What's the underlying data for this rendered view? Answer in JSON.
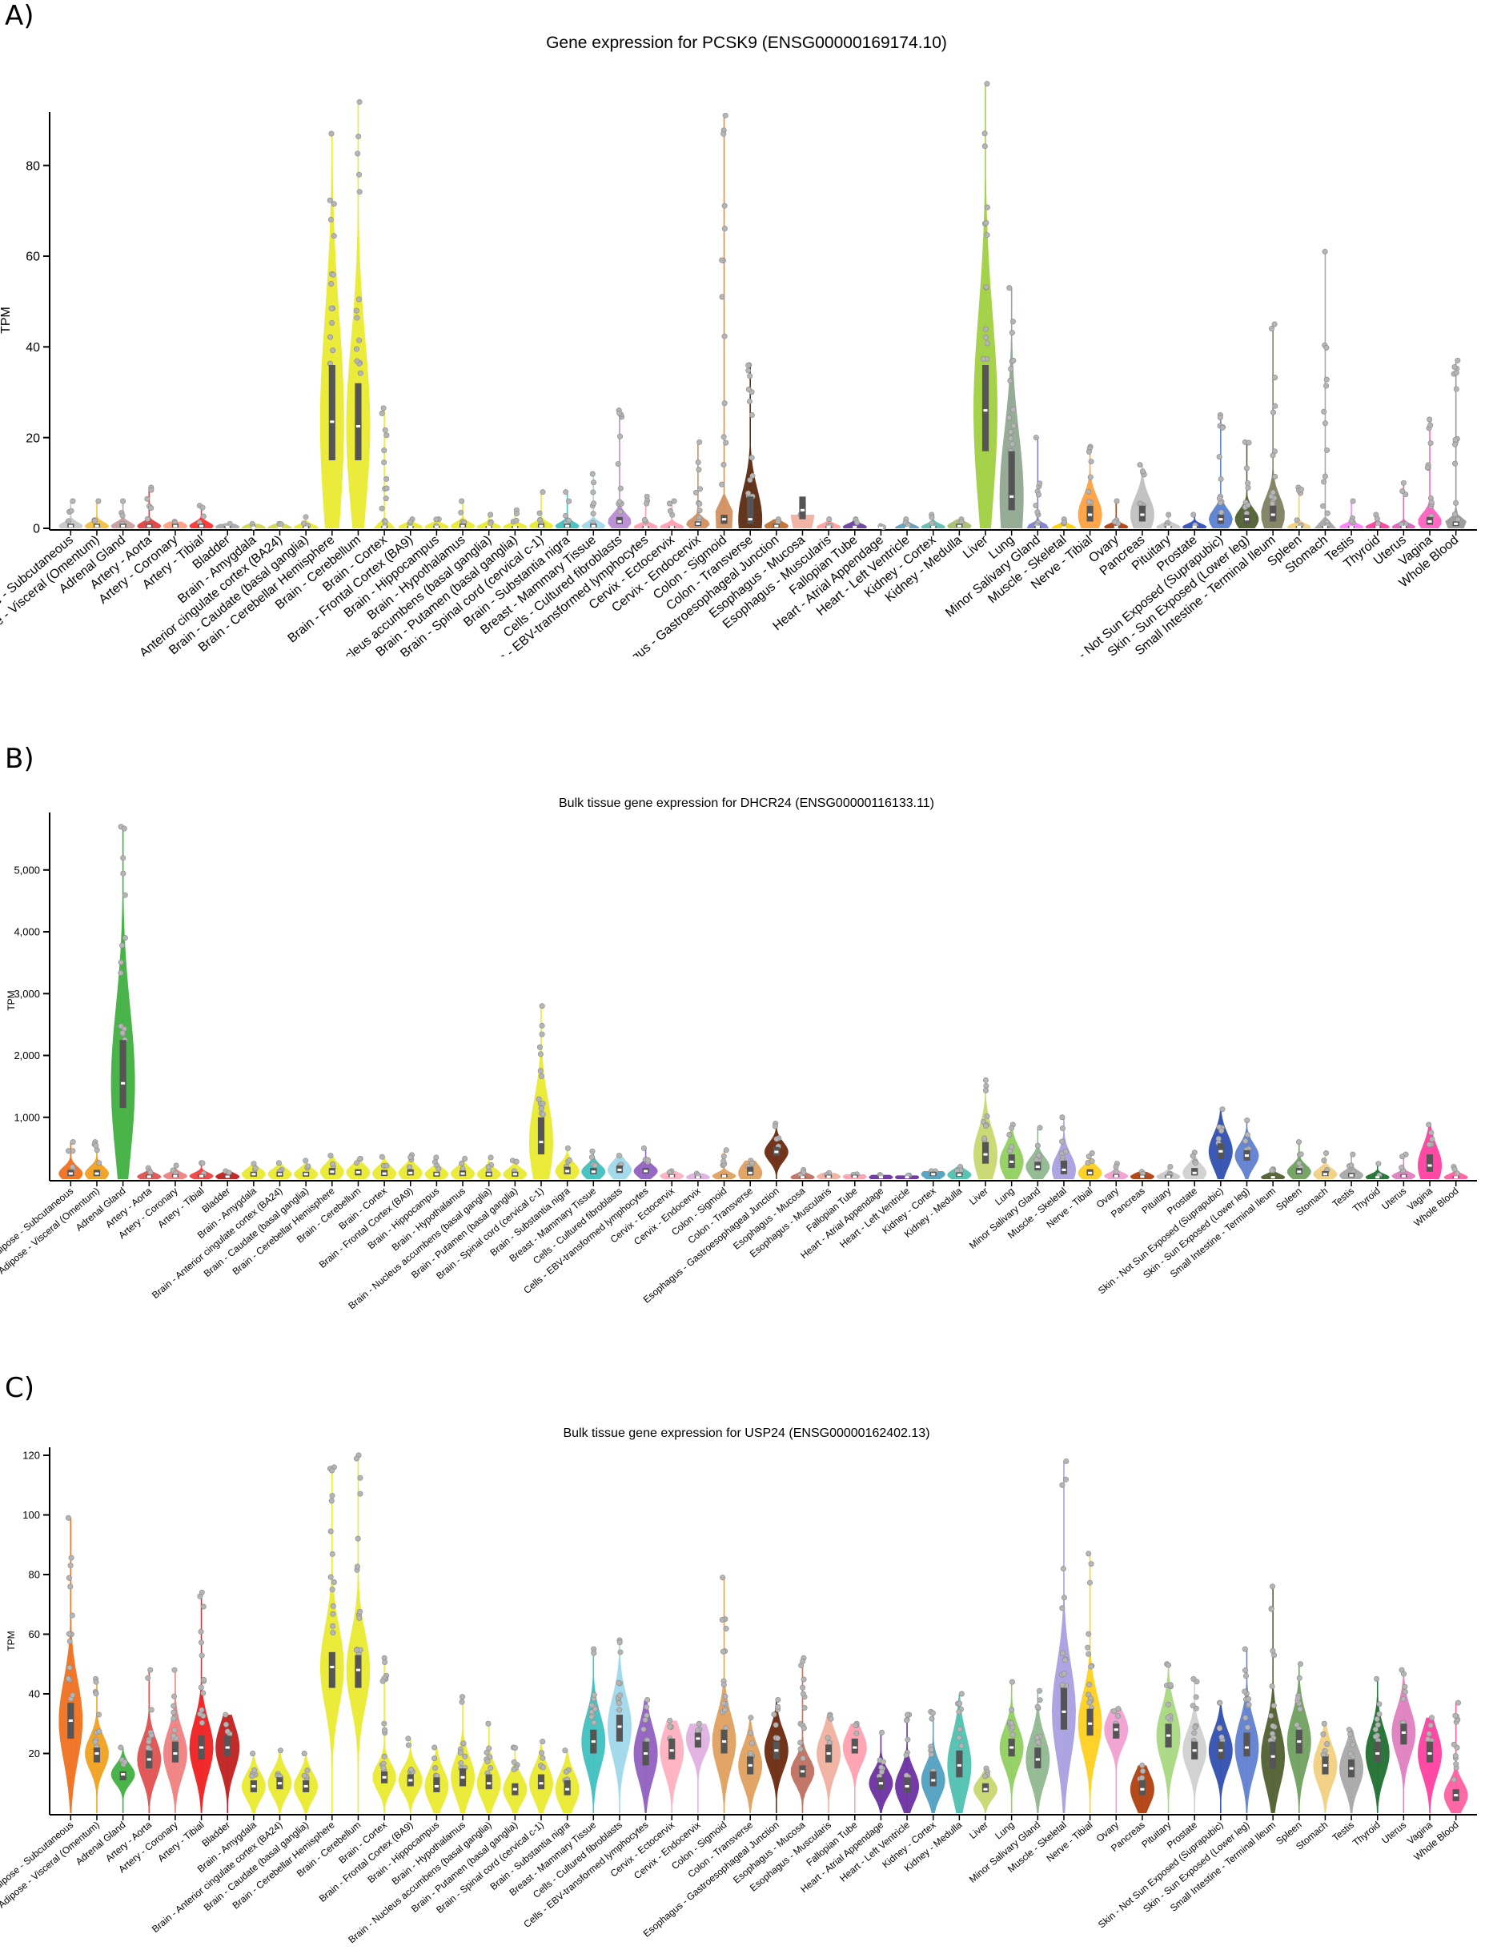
{
  "panels": [
    {
      "letter": "A)",
      "title": "Gene expression for PCSK9 (ENSG00000169174.10)"
    },
    {
      "letter": "B)",
      "title": "Bulk tissue gene expression for DHCR24 (ENSG00000116133.11)"
    },
    {
      "letter": "C)",
      "title": "Bulk tissue gene expression for USP24 (ENSG00000162402.13)"
    }
  ],
  "chart_data": [
    {
      "type": "violin",
      "title": "Gene expression for PCSK9 (ENSG00000169174.10)",
      "xlabel": "",
      "ylabel": "TPM",
      "ylim": [
        0,
        90
      ],
      "yticks": [
        0,
        20,
        40,
        60,
        80
      ],
      "ytick_labels": [
        "0",
        "20",
        "40",
        "60",
        "80"
      ],
      "colors": [
        "#c8c8c8",
        "#f0c040",
        "#c7a0a0",
        "#e04040",
        "#ff9f80",
        "#ff3030",
        "#a8a8a8",
        "#d4d84a",
        "#d4d84a",
        "#eaea30",
        "#eaea30",
        "#eaea30",
        "#eaea30",
        "#eaea30",
        "#eaea30",
        "#eaea30",
        "#eaea30",
        "#eaea30",
        "#eaea30",
        "#40c0c0",
        "#9fd8ea",
        "#b98bd4",
        "#ff9fb0",
        "#ff9fb0",
        "#d09060",
        "#d09060",
        "#5a2a10",
        "#c07030",
        "#f0b0a0",
        "#ffa0a0",
        "#6a40a0",
        "#6a40a0",
        "#60a0c0",
        "#60c0b0",
        "#a8c070",
        "#a0d040",
        "#90a890",
        "#8080d0",
        "#ffd000",
        "#ffa040",
        "#b04010",
        "#c0c0c0",
        "#c8c8c8",
        "#3050c0",
        "#5a80d0",
        "#506030",
        "#808060",
        "#f0d080",
        "#a8a8a8",
        "#ff80ff",
        "#ff40a0",
        "#e060c0",
        "#ff60c0"
      ],
      "categories": [
        "Adipose - Subcutaneous",
        "Adipose - Visceral (Omentum)",
        "Adrenal Gland",
        "Artery - Aorta",
        "Artery - Coronary",
        "Artery - Tibial",
        "Bladder",
        "Brain - Amygdala",
        "Brain - Anterior cingulate cortex (BA24)",
        "Brain - Caudate (basal ganglia)",
        "Brain - Cerebellar Hemisphere",
        "Brain - Cerebellum",
        "Brain - Cortex",
        "Brain - Frontal Cortex (BA9)",
        "Brain - Hippocampus",
        "Brain - Hypothalamus",
        "Brain - Nucleus accumbens (basal ganglia)",
        "Brain - Putamen (basal ganglia)",
        "Brain - Spinal cord (cervical c-1)",
        "Brain - Substantia nigra",
        "Breast - Mammary Tissue",
        "Cells - Cultured fibroblasts",
        "Cells - EBV-transformed lymphocytes",
        "Cervix - Ectocervix",
        "Cervix - Endocervix",
        "Colon - Sigmoid",
        "Colon - Transverse",
        "Esophagus - Gastroesophageal Junction",
        "Esophagus - Mucosa",
        "Esophagus - Muscularis",
        "Fallopian Tube",
        "Heart - Atrial Appendage",
        "Heart - Left Ventricle",
        "Kidney - Cortex",
        "Kidney - Medulla",
        "Liver",
        "Lung",
        "Minor Salivary Gland",
        "Muscle - Skeletal",
        "Nerve - Tibial",
        "Ovary",
        "Pancreas",
        "Pituitary",
        "Prostate",
        "Skin - Not Sun Exposed (Suprapubic)",
        "Skin - Sun Exposed (Lower leg)",
        "Small Intestine - Terminal Ileum",
        "Spleen",
        "Stomach",
        "Testis",
        "Thyroid",
        "Uterus",
        "Vagina",
        "Whole Blood"
      ],
      "medians": [
        0.5,
        0.5,
        0.5,
        0.5,
        0.5,
        0.5,
        0.3,
        0.1,
        0.1,
        0.2,
        23.5,
        22.5,
        0.3,
        0.3,
        0.3,
        0.5,
        0.3,
        0.3,
        0.5,
        0.5,
        0.5,
        1.5,
        0.3,
        0.3,
        1.0,
        2.0,
        2.0,
        0.5,
        4.0,
        0.3,
        0.3,
        0.1,
        0.1,
        0.3,
        0.5,
        26.0,
        7.0,
        0.3,
        0.1,
        3.0,
        0.3,
        3.0,
        0.3,
        0.3,
        2.0,
        2.0,
        3.0,
        0.3,
        0.3,
        0.3,
        0.3,
        0.3,
        1.5,
        1.0
      ],
      "q1": [
        0.2,
        0.2,
        0.2,
        0.2,
        0.2,
        0.2,
        0.1,
        0.0,
        0.0,
        0.1,
        15,
        15,
        0.1,
        0.1,
        0.1,
        0.2,
        0.1,
        0.1,
        0.2,
        0.2,
        0.2,
        1.0,
        0.1,
        0.1,
        0.5,
        1.0,
        1.0,
        0.2,
        2.0,
        0.1,
        0.1,
        0.0,
        0.0,
        0.1,
        0.2,
        17,
        4,
        0.1,
        0.0,
        1.5,
        0.1,
        1.5,
        0.1,
        0.1,
        1.0,
        1.0,
        1.5,
        0.1,
        0.1,
        0.1,
        0.1,
        0.1,
        0.8,
        0.5
      ],
      "q3": [
        1.0,
        1.0,
        1.0,
        1.0,
        1.0,
        1.0,
        0.5,
        0.2,
        0.2,
        0.5,
        36,
        32,
        0.5,
        0.5,
        0.5,
        1.0,
        0.5,
        0.5,
        1.0,
        1.0,
        1.0,
        2.5,
        0.5,
        0.5,
        1.5,
        3.0,
        7.0,
        1.0,
        7.0,
        0.5,
        0.5,
        0.2,
        0.2,
        0.5,
        1.0,
        36,
        17,
        0.5,
        0.2,
        5.0,
        0.5,
        5.0,
        0.5,
        0.5,
        3.0,
        3.0,
        5.0,
        0.5,
        0.5,
        0.5,
        0.5,
        0.5,
        2.5,
        1.5
      ],
      "max": [
        6,
        6,
        6,
        9,
        1.5,
        5,
        1,
        1,
        1,
        2.5,
        87,
        94,
        26.5,
        2,
        2,
        6,
        3,
        4,
        8,
        8,
        12,
        26,
        7,
        6,
        19,
        91,
        36,
        2,
        3,
        2,
        2,
        0.5,
        2,
        3,
        2,
        98,
        53,
        20,
        2,
        18,
        6,
        14,
        3,
        3,
        25,
        19,
        45,
        9,
        61,
        6,
        3,
        10,
        24,
        37
      ],
      "max_color": [
        0,
        0,
        0,
        0,
        0,
        0,
        0,
        0,
        0,
        0,
        0,
        0,
        0,
        0,
        0,
        0,
        0,
        0,
        0,
        0,
        0,
        0,
        0,
        0,
        0,
        0,
        0,
        0,
        0,
        0,
        0,
        0,
        0,
        0,
        0,
        0,
        0,
        0,
        0,
        0,
        0,
        0,
        0,
        0,
        0,
        0,
        0,
        0,
        0,
        0,
        0,
        0,
        0,
        0
      ]
    },
    {
      "type": "violin",
      "title": "Bulk tissue gene expression for DHCR24 (ENSG00000116133.11)",
      "xlabel": "",
      "ylabel": "TPM",
      "ylim": [
        0,
        5800
      ],
      "yticks": [
        1000,
        2000,
        3000,
        4000,
        5000
      ],
      "ytick_labels": [
        "1,000",
        "2,000",
        "3,000",
        "4,000",
        "5,000"
      ],
      "colors": [
        "#f07020",
        "#f0a020",
        "#40b040",
        "#e05050",
        "#f08080",
        "#f04040",
        "#c02020",
        "#eaea30",
        "#eaea30",
        "#eaea30",
        "#eaea30",
        "#eaea30",
        "#eaea30",
        "#eaea30",
        "#eaea30",
        "#eaea30",
        "#eaea30",
        "#eaea30",
        "#eaea30",
        "#eaea30",
        "#40c0c0",
        "#9fd8ea",
        "#9060c0",
        "#ffb0c0",
        "#e0b0e0",
        "#e0a060",
        "#e0a060",
        "#6a2a10",
        "#c07060",
        "#f0b0a0",
        "#ffa0b0",
        "#6a30a0",
        "#6a30a0",
        "#50a0c0",
        "#50c0b0",
        "#c8d870",
        "#90d060",
        "#90b890",
        "#a8a0e0",
        "#ffd020",
        "#f0a0d0",
        "#b04010",
        "#c8c8c8",
        "#d0d0d0",
        "#3050b0",
        "#6080d0",
        "#506030",
        "#70a060",
        "#f0d080",
        "#a8a8a8",
        "#207030",
        "#e080c0",
        "#ff40a0",
        "#ff60a0"
      ],
      "categories": [
        "Adipose - Subcutaneous",
        "Adipose - Visceral (Omentum)",
        "Adrenal Gland",
        "Artery - Aorta",
        "Artery - Coronary",
        "Artery - Tibial",
        "Bladder",
        "Brain - Amygdala",
        "Brain - Anterior cingulate cortex (BA24)",
        "Brain - Caudate (basal ganglia)",
        "Brain - Cerebellar Hemisphere",
        "Brain - Cerebellum",
        "Brain - Cortex",
        "Brain - Frontal Cortex (BA9)",
        "Brain - Hippocampus",
        "Brain - Hypothalamus",
        "Brain - Nucleus accumbens (basal ganglia)",
        "Brain - Putamen (basal ganglia)",
        "Brain - Spinal cord (cervical c-1)",
        "Brain - Substantia nigra",
        "Breast - Mammary Tissue",
        "Cells - Cultured fibroblasts",
        "Cells - EBV-transformed lymphocytes",
        "Cervix - Ectocervix",
        "Cervix - Endocervix",
        "Colon - Sigmoid",
        "Colon - Transverse",
        "Esophagus - Gastroesophageal Junction",
        "Esophagus - Mucosa",
        "Esophagus - Muscularis",
        "Fallopian Tube",
        "Heart - Atrial Appendage",
        "Heart - Left Ventricle",
        "Kidney - Cortex",
        "Kidney - Medulla",
        "Liver",
        "Lung",
        "Minor Salivary Gland",
        "Muscle - Skeletal",
        "Nerve - Tibial",
        "Ovary",
        "Pancreas",
        "Pituitary",
        "Prostate",
        "Skin - Not Sun Exposed (Suprapubic)",
        "Skin - Sun Exposed (Lower leg)",
        "Small Intestine - Terminal Ileum",
        "Spleen",
        "Stomach",
        "Testis",
        "Thyroid",
        "Uterus",
        "Vagina",
        "Whole Blood"
      ],
      "medians": [
        90,
        90,
        1550,
        40,
        50,
        50,
        40,
        80,
        80,
        80,
        120,
        110,
        90,
        100,
        80,
        90,
        80,
        80,
        600,
        130,
        120,
        150,
        130,
        50,
        30,
        50,
        100,
        440,
        30,
        40,
        40,
        30,
        30,
        80,
        70,
        400,
        280,
        200,
        150,
        100,
        50,
        40,
        40,
        100,
        450,
        380,
        30,
        120,
        80,
        60,
        30,
        50,
        220,
        30
      ],
      "q1": [
        50,
        50,
        1150,
        20,
        30,
        30,
        20,
        40,
        40,
        40,
        70,
        60,
        50,
        60,
        40,
        50,
        40,
        40,
        400,
        80,
        80,
        100,
        90,
        30,
        15,
        30,
        60,
        380,
        15,
        20,
        20,
        15,
        15,
        50,
        40,
        250,
        180,
        140,
        80,
        60,
        30,
        20,
        20,
        60,
        330,
        300,
        15,
        80,
        50,
        30,
        15,
        30,
        120,
        15
      ],
      "q3": [
        150,
        150,
        2250,
        70,
        80,
        80,
        70,
        120,
        120,
        120,
        180,
        160,
        150,
        160,
        120,
        140,
        120,
        120,
        1000,
        200,
        180,
        220,
        180,
        80,
        50,
        80,
        200,
        520,
        50,
        70,
        70,
        50,
        50,
        120,
        110,
        600,
        400,
        280,
        300,
        160,
        80,
        70,
        70,
        180,
        580,
        470,
        50,
        180,
        130,
        100,
        50,
        80,
        400,
        50
      ],
      "max": [
        600,
        600,
        5700,
        180,
        220,
        260,
        130,
        250,
        260,
        300,
        380,
        330,
        360,
        390,
        350,
        330,
        350,
        300,
        2800,
        500,
        450,
        380,
        500,
        130,
        90,
        470,
        300,
        900,
        150,
        100,
        80,
        70,
        60,
        130,
        200,
        1600,
        880,
        830,
        1000,
        420,
        250,
        120,
        200,
        430,
        1130,
        950,
        160,
        600,
        420,
        400,
        250,
        400,
        880,
        200
      ],
      "max_color": [
        0,
        0,
        0,
        0,
        0,
        0,
        0,
        0,
        0,
        0,
        0,
        0,
        0,
        0,
        0,
        0,
        0,
        0,
        0,
        0,
        0,
        0,
        0,
        0,
        0,
        0,
        0,
        0,
        0,
        0,
        0,
        0,
        0,
        0,
        0,
        0,
        0,
        0,
        0,
        0,
        0,
        0,
        0,
        0,
        0,
        0,
        0,
        0,
        0,
        0,
        0,
        0,
        0,
        0
      ]
    },
    {
      "type": "violin",
      "title": "Bulk tissue gene expression for USP24 (ENSG00000162402.13)",
      "xlabel": "",
      "ylabel": "TPM",
      "ylim": [
        0,
        120
      ],
      "yticks": [
        20,
        40,
        60,
        80,
        100,
        120
      ],
      "ytick_labels": [
        "20",
        "40",
        "60",
        "80",
        "100",
        "120"
      ],
      "colors": [
        "#f07020",
        "#f0a020",
        "#40b040",
        "#e05050",
        "#f08080",
        "#f02020",
        "#c02020",
        "#eaea30",
        "#eaea30",
        "#eaea30",
        "#eaea30",
        "#eaea30",
        "#eaea30",
        "#eaea30",
        "#eaea30",
        "#eaea30",
        "#eaea30",
        "#eaea30",
        "#eaea30",
        "#eaea30",
        "#40c0c0",
        "#9fd8ea",
        "#9060c0",
        "#ffb0c0",
        "#e0b0e0",
        "#e0a060",
        "#e0a060",
        "#6a2a10",
        "#c07060",
        "#f0b0a0",
        "#ffa0b0",
        "#6a30a0",
        "#6a30a0",
        "#50a0c0",
        "#50c0b0",
        "#c8d870",
        "#90d060",
        "#90b890",
        "#a8a0e0",
        "#ffd020",
        "#f0a0d0",
        "#b04010",
        "#a8d880",
        "#d0d0d0",
        "#3050b0",
        "#6080d0",
        "#506030",
        "#70a060",
        "#f0d080",
        "#a8a8a8",
        "#207030",
        "#e080c0",
        "#ff40a0",
        "#ff60a0"
      ],
      "categories": [
        "Adipose - Subcutaneous",
        "Adipose - Visceral (Omentum)",
        "Adrenal Gland",
        "Artery - Aorta",
        "Artery - Coronary",
        "Artery - Tibial",
        "Bladder",
        "Brain - Amygdala",
        "Brain - Anterior cingulate cortex (BA24)",
        "Brain - Caudate (basal ganglia)",
        "Brain - Cerebellar Hemisphere",
        "Brain - Cerebellum",
        "Brain - Cortex",
        "Brain - Frontal Cortex (BA9)",
        "Brain - Hippocampus",
        "Brain - Hypothalamus",
        "Brain - Nucleus accumbens (basal ganglia)",
        "Brain - Putamen (basal ganglia)",
        "Brain - Spinal cord (cervical c-1)",
        "Brain - Substantia nigra",
        "Breast - Mammary Tissue",
        "Cells - Cultured fibroblasts",
        "Cells - EBV-transformed lymphocytes",
        "Cervix - Ectocervix",
        "Cervix - Endocervix",
        "Colon - Sigmoid",
        "Colon - Transverse",
        "Esophagus - Gastroesophageal Junction",
        "Esophagus - Mucosa",
        "Esophagus - Muscularis",
        "Fallopian Tube",
        "Heart - Atrial Appendage",
        "Heart - Left Ventricle",
        "Kidney - Cortex",
        "Kidney - Medulla",
        "Liver",
        "Lung",
        "Minor Salivary Gland",
        "Muscle - Skeletal",
        "Nerve - Tibial",
        "Ovary",
        "Pancreas",
        "Pituitary",
        "Prostate",
        "Skin - Not Sun Exposed (Suprapubic)",
        "Skin - Sun Exposed (Lower leg)",
        "Small Intestine - Terminal Ileum",
        "Spleen",
        "Stomach",
        "Testis",
        "Thyroid",
        "Uterus",
        "Vagina",
        "Whole Blood"
      ],
      "medians": [
        31,
        20,
        13,
        18,
        20,
        22,
        22,
        9,
        10,
        9,
        49,
        48,
        12,
        11,
        9,
        12,
        10,
        8,
        10,
        8,
        24,
        29,
        20,
        21,
        25,
        24,
        16,
        21,
        14,
        20,
        22,
        10,
        9,
        11,
        16,
        8,
        22,
        18,
        34,
        30,
        28,
        8,
        26,
        21,
        21,
        22,
        19,
        24,
        16,
        15,
        20,
        27,
        20,
        6
      ],
      "q1": [
        25,
        17,
        11,
        15,
        17,
        18,
        19,
        7,
        8,
        7,
        42,
        42,
        10,
        9,
        7,
        9,
        8,
        6,
        8,
        6,
        20,
        24,
        16,
        18,
        22,
        20,
        13,
        18,
        12,
        17,
        20,
        8,
        7,
        9,
        12,
        7,
        19,
        15,
        28,
        26,
        25,
        6,
        22,
        18,
        18,
        19,
        15,
        20,
        13,
        12,
        17,
        23,
        17,
        4
      ],
      "q3": [
        37,
        22,
        14,
        21,
        24,
        26,
        26,
        11,
        12,
        11,
        54,
        53,
        14,
        13,
        12,
        15,
        13,
        10,
        13,
        11,
        28,
        33,
        24,
        25,
        27,
        28,
        19,
        24,
        16,
        23,
        25,
        12,
        12,
        14,
        21,
        10,
        25,
        22,
        42,
        35,
        30,
        11,
        30,
        24,
        24,
        27,
        24,
        28,
        19,
        18,
        24,
        30,
        24,
        8
      ],
      "max": [
        99,
        45,
        22,
        48,
        48,
        74,
        33,
        20,
        21,
        20,
        116,
        120,
        52,
        25,
        22,
        39,
        30,
        22,
        24,
        21,
        55,
        58,
        38,
        31,
        30,
        79,
        32,
        38,
        52,
        33,
        30,
        27,
        33,
        34,
        40,
        15,
        44,
        41,
        118,
        87,
        35,
        16,
        50,
        45,
        37,
        55,
        76,
        50,
        30,
        28,
        45,
        48,
        32,
        37
      ],
      "max_color": [
        0,
        0,
        0,
        0,
        0,
        0,
        0,
        0,
        0,
        0,
        0,
        0,
        0,
        0,
        0,
        0,
        0,
        0,
        0,
        0,
        0,
        0,
        0,
        0,
        0,
        0,
        0,
        0,
        0,
        0,
        0,
        0,
        0,
        0,
        0,
        0,
        0,
        0,
        0,
        0,
        0,
        0,
        0,
        0,
        0,
        0,
        0,
        0,
        0,
        0,
        0,
        0,
        0,
        0
      ]
    }
  ]
}
